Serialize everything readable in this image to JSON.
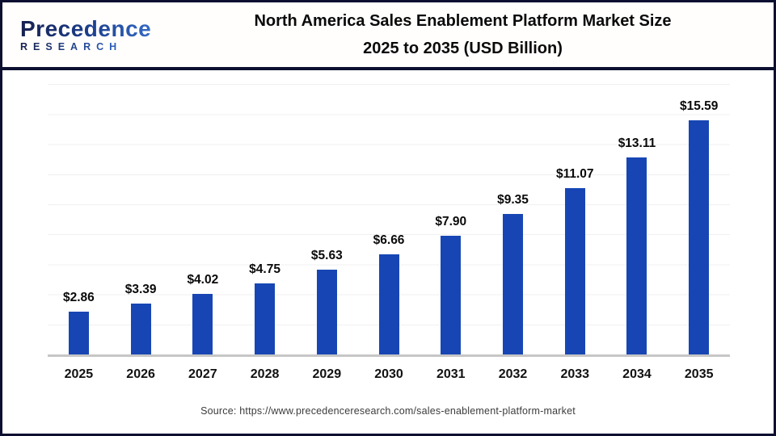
{
  "header": {
    "logo_text": "Precedence",
    "logo_subtext": "RESEARCH",
    "title_line1": "North America Sales Enablement Platform Market Size",
    "title_line2": "2025 to 2035 (USD Billion)"
  },
  "chart_data": {
    "type": "bar",
    "title": "North America Sales Enablement Platform Market Size 2025 to 2035 (USD Billion)",
    "categories": [
      "2025",
      "2026",
      "2027",
      "2028",
      "2029",
      "2030",
      "2031",
      "2032",
      "2033",
      "2034",
      "2035"
    ],
    "values": [
      2.86,
      3.39,
      4.02,
      4.75,
      5.63,
      6.66,
      7.9,
      9.35,
      11.07,
      13.11,
      15.59
    ],
    "bar_labels": [
      "$2.86",
      "$3.39",
      "$4.02",
      "$4.75",
      "$5.63",
      "$6.66",
      "$7.90",
      "$9.35",
      "$11.07",
      "$13.11",
      "$15.59"
    ],
    "xlabel": "",
    "ylabel": "",
    "unit": "USD Billion",
    "ylim": [
      0,
      19
    ],
    "gridlines": true,
    "gridline_step": 2,
    "legend": "none",
    "bar_color": "#1746B4",
    "axis_line_color": "#c6c6c6",
    "gridline_color": "#f0f0f1"
  },
  "footer": {
    "source": "Source: https://www.precedenceresearch.com/sales-enablement-platform-market"
  },
  "colors": {
    "border_navy": "#0d0f30",
    "title_text": "#0a0a0a"
  }
}
